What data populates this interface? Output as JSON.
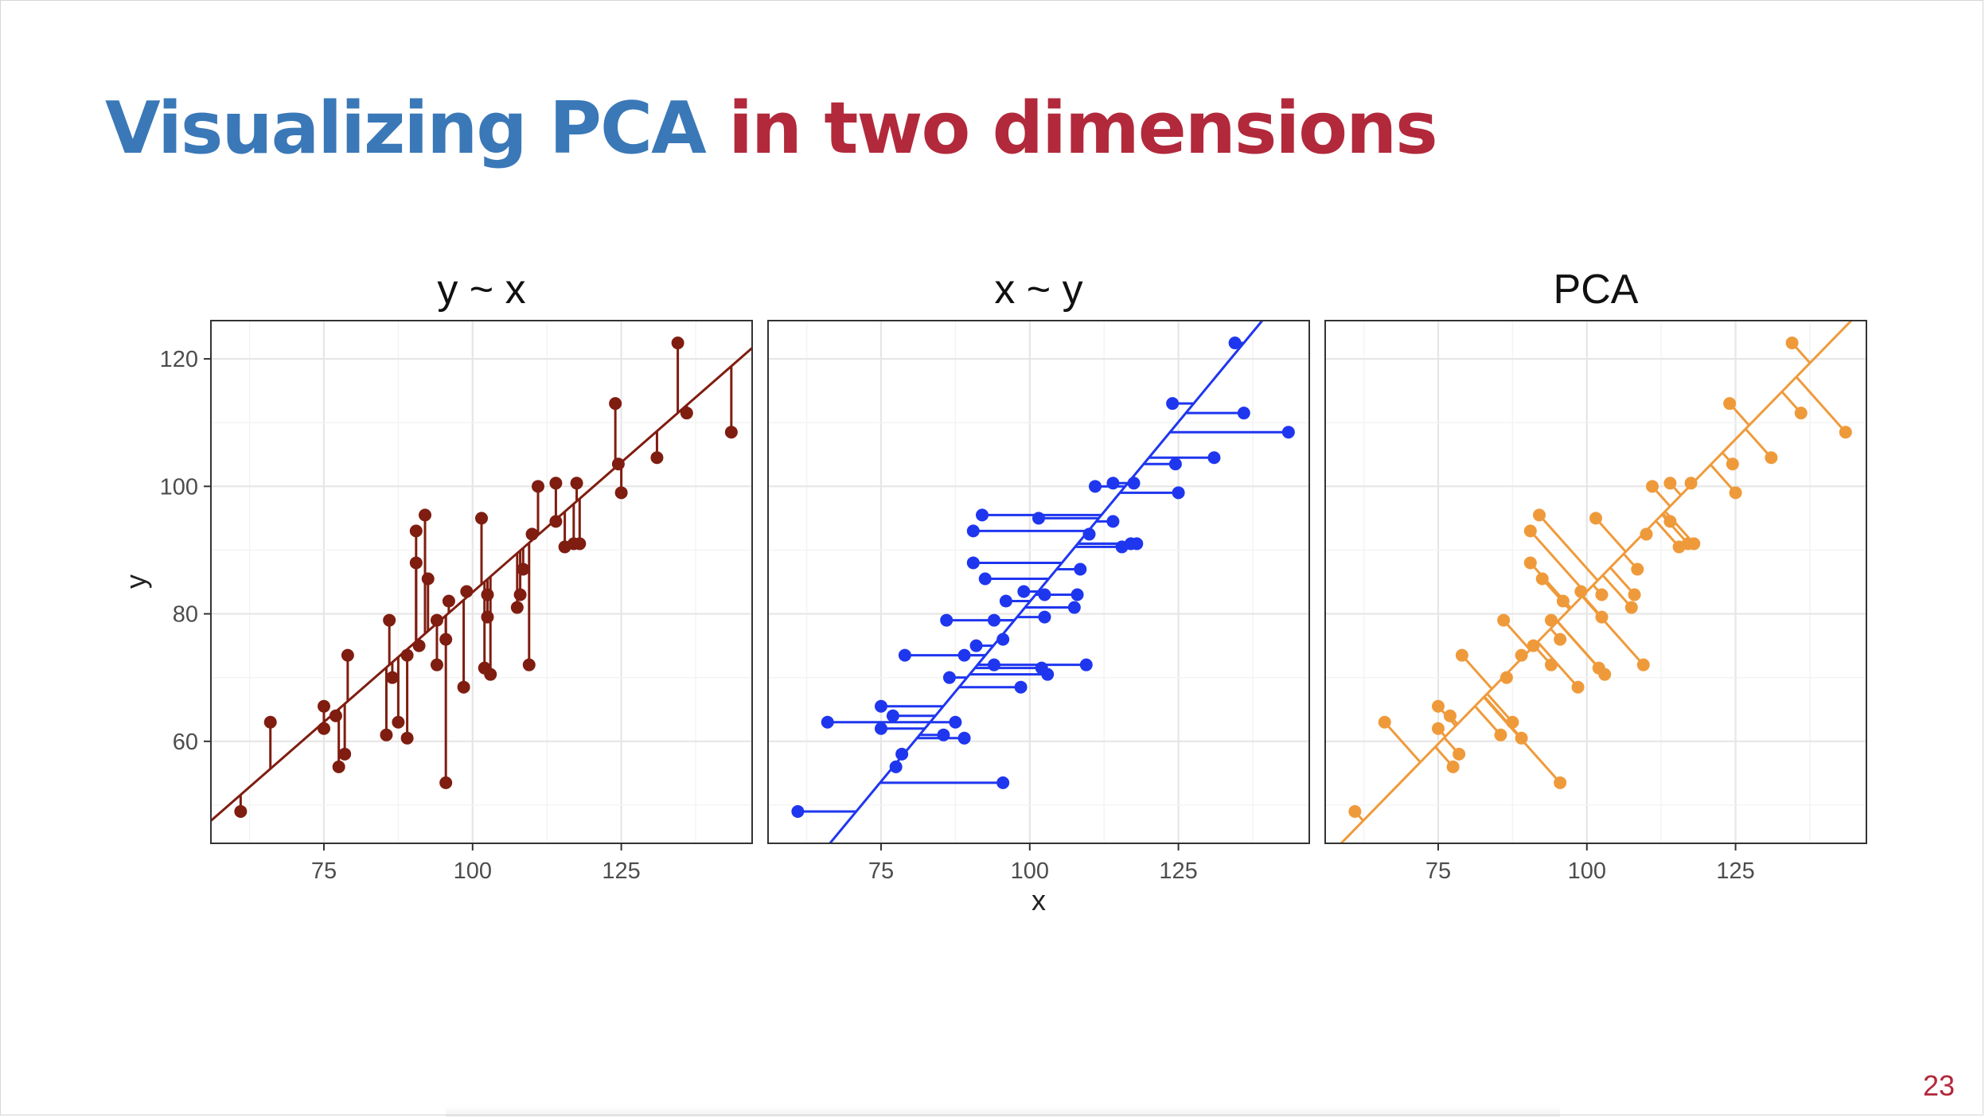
{
  "slide": {
    "title_part_1": "Visualizing PCA",
    "title_part_2": "in two dimensions",
    "page_number": "23"
  },
  "colors": {
    "title_blue": "#3a78b8",
    "title_red": "#b2293b",
    "panel_yx": "#7f1d10",
    "panel_xy": "#1f36ef",
    "panel_pca": "#ef9a3a",
    "grid_major": "#e6e6e6",
    "grid_minor": "#f3f3f3"
  },
  "chart_data": {
    "type": "scatter",
    "xlim": [
      56,
      147
    ],
    "ylim": [
      44,
      126
    ],
    "xticks": [
      75,
      100,
      125
    ],
    "yticks": [
      60,
      80,
      100,
      120
    ],
    "xlabel": "x",
    "ylabel": "y",
    "grid": true,
    "points": [
      [
        61,
        49
      ],
      [
        66,
        63
      ],
      [
        75,
        62
      ],
      [
        75,
        65.5
      ],
      [
        77,
        64
      ],
      [
        77.5,
        56
      ],
      [
        78.5,
        58
      ],
      [
        79,
        73.5
      ],
      [
        85.5,
        61
      ],
      [
        86,
        79
      ],
      [
        86.5,
        70
      ],
      [
        87.5,
        63
      ],
      [
        89,
        73.5
      ],
      [
        89,
        60.5
      ],
      [
        90.5,
        93
      ],
      [
        90.5,
        88
      ],
      [
        91,
        75
      ],
      [
        92,
        95.5
      ],
      [
        92.5,
        85.5
      ],
      [
        94,
        72
      ],
      [
        94,
        79
      ],
      [
        95.5,
        76
      ],
      [
        95.5,
        53.5
      ],
      [
        96,
        82
      ],
      [
        98.5,
        68.5
      ],
      [
        99,
        83.5
      ],
      [
        101.5,
        95
      ],
      [
        102,
        71.5
      ],
      [
        102.5,
        79.5
      ],
      [
        102.5,
        83
      ],
      [
        103,
        70.5
      ],
      [
        107.5,
        81
      ],
      [
        108,
        83
      ],
      [
        108.5,
        87
      ],
      [
        109.5,
        72
      ],
      [
        110,
        92.5
      ],
      [
        111,
        100
      ],
      [
        114,
        100.5
      ],
      [
        114,
        94.5
      ],
      [
        115.5,
        90.5
      ],
      [
        117,
        91
      ],
      [
        117.5,
        100.5
      ],
      [
        118,
        91
      ],
      [
        124,
        113
      ],
      [
        124.5,
        103.5
      ],
      [
        125,
        99
      ],
      [
        131,
        104.5
      ],
      [
        134.5,
        122.5
      ],
      [
        136,
        111.5
      ],
      [
        143.5,
        108.5
      ]
    ],
    "panels": [
      {
        "title": "y ~ x",
        "method": "y~x",
        "fit": {
          "intercept": 1.9,
          "slope": 0.815
        }
      },
      {
        "title": "x ~ y",
        "method": "x~y",
        "fit": {
          "intercept": -30.9,
          "slope": 1.128
        }
      },
      {
        "title": "PCA",
        "method": "pca",
        "fit": {
          "intercept": -12.1,
          "slope": 0.956
        }
      }
    ]
  }
}
